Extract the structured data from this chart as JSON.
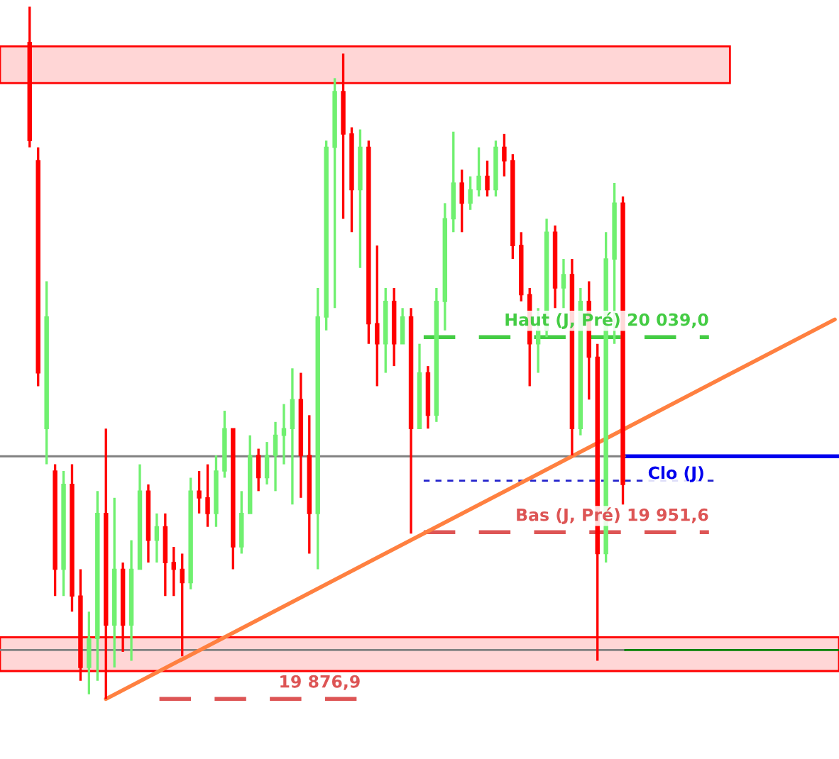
{
  "chart_data": {
    "type": "candlestick",
    "categories": [
      null,
      null,
      null,
      null,
      null,
      null,
      null,
      null,
      null,
      null,
      null,
      null,
      null,
      null,
      null,
      null,
      null,
      null,
      null,
      null,
      null,
      null,
      null,
      null,
      null,
      null,
      null,
      null,
      null,
      null,
      null,
      null,
      null,
      null,
      null,
      null,
      null,
      null,
      null,
      null,
      null,
      null,
      null,
      null,
      null,
      null,
      null,
      null,
      null,
      null,
      null,
      null,
      null,
      null,
      null,
      null,
      null,
      null,
      null,
      null,
      null,
      null,
      null,
      null,
      null,
      null,
      null,
      null,
      null,
      null,
      null,
      null,
      null,
      null,
      null,
      null,
      null,
      null,
      null,
      null,
      null,
      null,
      null,
      null,
      null,
      null,
      null,
      null,
      null,
      null,
      null,
      null,
      null,
      null,
      null,
      null,
      null,
      null,
      null
    ],
    "ohlc": [
      null,
      null,
      null,
      [
        20171,
        20187,
        20124,
        20127
      ],
      [
        20118,
        20124,
        20017,
        20023
      ],
      [
        19998,
        20064,
        19982,
        20048
      ],
      [
        19979,
        19982,
        19923,
        19935
      ],
      [
        19935,
        19979,
        19923,
        19973
      ],
      [
        19973,
        19982,
        19916,
        19923
      ],
      [
        19923,
        19935,
        19885,
        19891
      ],
      [
        19891,
        19916,
        19879,
        19904
      ],
      [
        19904,
        19970,
        19885,
        19960
      ],
      [
        19960,
        19998,
        19876.9,
        19910
      ],
      [
        19910,
        19967,
        19891,
        19935
      ],
      [
        19935,
        19938,
        19898,
        19910
      ],
      [
        19910,
        19948,
        19894,
        19935
      ],
      [
        19935,
        19982,
        19935,
        19970
      ],
      [
        19970,
        19973,
        19938,
        19948
      ],
      [
        19948,
        19960,
        19938,
        19954
      ],
      [
        19954,
        19960,
        19923,
        19938
      ],
      [
        19938,
        19945,
        19923,
        19935
      ],
      [
        19935,
        19942,
        19896,
        19929
      ],
      [
        19929,
        19976,
        19926,
        19970
      ],
      [
        19970,
        19979,
        19960,
        19967
      ],
      [
        19967,
        19982,
        19954,
        19960
      ],
      [
        19960,
        19986,
        19954,
        19979
      ],
      [
        19979,
        20006,
        19976,
        19998
      ],
      [
        19998,
        19998,
        19935,
        19945
      ],
      [
        19945,
        19970,
        19942,
        19960
      ],
      [
        19960,
        19995,
        19960,
        19986
      ],
      [
        19986,
        19989,
        19970,
        19976
      ],
      [
        19976,
        19992,
        19973,
        19986
      ],
      [
        19986,
        20001,
        19970,
        19995
      ],
      [
        19995,
        20009,
        19982,
        19998
      ],
      [
        19998,
        20025,
        19964,
        20011
      ],
      [
        20011,
        20023,
        19967,
        19986
      ],
      [
        19986,
        20004,
        19942,
        19960
      ],
      [
        19960,
        20061,
        19935,
        20048
      ],
      [
        20048,
        20127,
        20042,
        20124
      ],
      [
        20124,
        20155,
        20052,
        20149
      ],
      [
        20149,
        20166,
        20092,
        20130
      ],
      [
        20130,
        20133,
        20086,
        20105
      ],
      [
        20105,
        20132,
        20070,
        20124
      ],
      [
        20124,
        20127,
        20036,
        20045
      ],
      [
        20045,
        20080,
        20017,
        20036
      ],
      [
        20036,
        20061,
        20023,
        20055
      ],
      [
        20055,
        20061,
        20026,
        20036
      ],
      [
        20036,
        20052,
        20036,
        20048
      ],
      [
        20048,
        20052,
        19951,
        19998
      ],
      [
        19998,
        20036,
        19998,
        20023
      ],
      [
        20023,
        20026,
        19998,
        20004
      ],
      [
        20004,
        20061,
        20001,
        20055
      ],
      [
        20055,
        20099,
        20042,
        20092
      ],
      [
        20092,
        20131,
        20086,
        20108
      ],
      [
        20108,
        20114,
        20086,
        20099
      ],
      [
        20099,
        20111,
        20096,
        20105
      ],
      [
        20105,
        20124,
        20102,
        20111
      ],
      [
        20111,
        20118,
        20102,
        20105
      ],
      [
        20105,
        20127,
        20102,
        20124
      ],
      [
        20124,
        20130,
        20111,
        20118
      ],
      [
        20118,
        20121,
        20074,
        20080
      ],
      [
        20080,
        20086,
        20055,
        20058
      ],
      [
        20058,
        20061,
        20017,
        20036
      ],
      [
        20036,
        20052,
        20023,
        20042
      ],
      [
        20042,
        20092,
        20039,
        20086
      ],
      [
        20086,
        20089,
        20052,
        20061
      ],
      [
        20061,
        20074,
        20052,
        20067
      ],
      [
        20067,
        20074,
        19986,
        19998
      ],
      [
        19998,
        20061,
        19995,
        20055
      ],
      [
        20055,
        20064,
        20011,
        20030
      ],
      [
        20030,
        20036,
        19894,
        19942
      ],
      [
        19942,
        20086,
        19938,
        20074
      ],
      [
        20074,
        20108,
        20036,
        20099
      ],
      [
        20099,
        20102,
        19964,
        19973
      ],
      null,
      null,
      null,
      null,
      null,
      null,
      null,
      null,
      null,
      null,
      null,
      null,
      null,
      null,
      null,
      null,
      null,
      null,
      null,
      null,
      null,
      null,
      null,
      null,
      null
    ],
    "colors": [
      null,
      null,
      null,
      "#ff0000",
      "#ff0000",
      "#70f070",
      "#ff0000",
      "#70f070",
      "#ff0000",
      "#ff0000",
      "#70f070",
      "#70f070",
      "#ff0000",
      "#70f070",
      "#ff0000",
      "#70f070",
      "#70f070",
      "#ff0000",
      "#70f070",
      "#ff0000",
      "#ff0000",
      "#ff0000",
      "#70f070",
      "#ff0000",
      "#ff0000",
      "#70f070",
      "#70f070",
      "#ff0000",
      "#70f070",
      "#70f070",
      "#ff0000",
      "#70f070",
      "#70f070",
      "#70f070",
      "#70f070",
      "#ff0000",
      "#ff0000",
      "#70f070",
      "#70f070",
      "#70f070",
      "#ff0000",
      "#ff0000",
      "#70f070",
      "#ff0000",
      "#ff0000",
      "#70f070",
      "#ff0000",
      "#70f070",
      "#ff0000",
      "#70f070",
      "#ff0000",
      "#70f070",
      "#70f070",
      "#70f070",
      "#ff0000",
      "#70f070",
      "#70f070",
      "#ff0000",
      "#70f070",
      "#ff0000",
      "#ff0000",
      "#ff0000",
      "#ff0000",
      "#70f070",
      "#70f070",
      "#ff0000",
      "#70f070",
      "#ff0000",
      "#70f070",
      "#ff0000",
      "#ff0000",
      "#70f070",
      "#70f070",
      "#ff0000",
      null,
      null,
      null,
      null,
      null,
      null,
      null,
      null,
      null,
      null,
      null,
      null,
      null,
      null,
      null,
      null,
      null,
      null,
      null,
      null,
      null,
      null,
      null,
      null,
      null
    ],
    "series": [
      {
        "type": "line",
        "color": "#ff8040",
        "values": [
          null,
          null,
          null,
          null,
          null,
          null,
          null,
          null,
          null,
          null,
          null,
          null,
          19876.9,
          null,
          null,
          null,
          null,
          null,
          null,
          null,
          null,
          null,
          null,
          null,
          null,
          null,
          null,
          null,
          null,
          null,
          null,
          null,
          null,
          null,
          null,
          null,
          null,
          null,
          null,
          null,
          null,
          null,
          null,
          null,
          null,
          null,
          null,
          null,
          null,
          null,
          null,
          null,
          null,
          null,
          null,
          null,
          null,
          null,
          null,
          null,
          null,
          null,
          null,
          null,
          null,
          null,
          null,
          null,
          null,
          null,
          null,
          null,
          null,
          null,
          null,
          null,
          null,
          null,
          null,
          null,
          null,
          null,
          null,
          null,
          null,
          null,
          null,
          null,
          null,
          null,
          null,
          null,
          null,
          null,
          null,
          null,
          null,
          null,
          20046.9
        ]
      }
    ],
    "ylim": [
      19850,
      20190
    ],
    "tick_labels": false,
    "ref_lines": [
      {
        "axis": "y",
        "value": 20039.0,
        "label": "Haut (J, Pré) 20 039,0",
        "color": "#44cc44",
        "line_style": "dashed"
      },
      {
        "axis": "y",
        "value": 19951.6,
        "label": "Bas (J, Pré) 19 951,6",
        "color": "#dd5555",
        "line_style": "dashed"
      },
      {
        "axis": "y",
        "value": 19876.9,
        "label": "19 876,9",
        "color": "#dd5555",
        "line_style": "dashed"
      },
      {
        "axis": "y",
        "value": 19985.6,
        "label": "Clo (J)",
        "color": "#0000ee",
        "line_style": "solid"
      },
      {
        "axis": "y",
        "value": 19974.7,
        "color": "#2222cc",
        "line_style": "dotted"
      },
      {
        "axis": "y",
        "value": 19985.6,
        "color": "#808080",
        "line_style": "solid"
      },
      {
        "axis": "y",
        "value": 19898.8,
        "color": "#808080",
        "line_style": "solid"
      },
      {
        "axis": "y",
        "value": 19898.8,
        "color": "#008000",
        "line_style": "solid"
      }
    ],
    "bands": [
      {
        "axis": "y",
        "from": 20152.8,
        "to": 20169.2,
        "color": "#ffd6d6"
      },
      {
        "axis": "y",
        "from": 19889.4,
        "to": 19904.5,
        "color": "#ffd6d6"
      }
    ]
  }
}
